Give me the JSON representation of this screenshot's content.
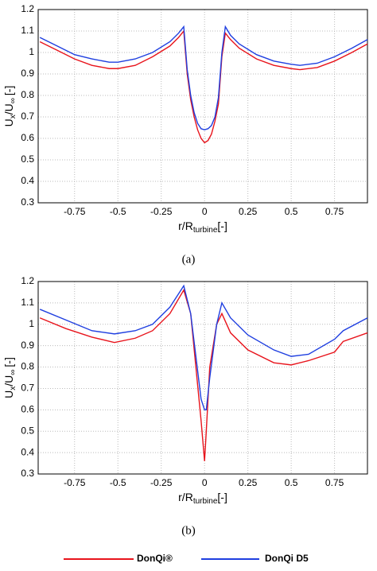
{
  "chart_data": [
    {
      "type": "line",
      "caption": "(a)",
      "xlabel": {
        "main": "r/R",
        "sub": "turbine",
        "suffix": "[-]"
      },
      "ylabel": {
        "main": "U",
        "sub": "x",
        "mid": "/U",
        "sub2": "∞",
        "suffix": "[-]"
      },
      "xlim": [
        -0.96,
        0.94
      ],
      "ylim": [
        0.3,
        1.2
      ],
      "xticks": [
        -0.75,
        -0.5,
        -0.25,
        0,
        0.25,
        0.5,
        0.75
      ],
      "yticks": [
        0.3,
        0.4,
        0.5,
        0.6,
        0.7,
        0.8,
        0.9,
        1,
        1.1,
        1.2
      ],
      "grid": true,
      "x": [
        -0.95,
        -0.85,
        -0.75,
        -0.65,
        -0.55,
        -0.5,
        -0.4,
        -0.3,
        -0.2,
        -0.15,
        -0.12,
        -0.1,
        -0.08,
        -0.06,
        -0.04,
        -0.02,
        0,
        0.02,
        0.04,
        0.06,
        0.08,
        0.1,
        0.12,
        0.15,
        0.2,
        0.3,
        0.4,
        0.5,
        0.55,
        0.65,
        0.75,
        0.85,
        0.94
      ],
      "series": [
        {
          "name": "DonQi®",
          "color": "#e8141c",
          "values": [
            1.05,
            1.01,
            0.97,
            0.94,
            0.925,
            0.925,
            0.94,
            0.98,
            1.03,
            1.07,
            1.1,
            0.9,
            0.78,
            0.7,
            0.64,
            0.6,
            0.58,
            0.59,
            0.62,
            0.68,
            0.76,
            0.98,
            1.09,
            1.06,
            1.02,
            0.97,
            0.94,
            0.925,
            0.92,
            0.93,
            0.96,
            1.0,
            1.04
          ]
        },
        {
          "name": "DonQi D5",
          "color": "#1f3fe0",
          "values": [
            1.07,
            1.03,
            0.99,
            0.97,
            0.955,
            0.955,
            0.97,
            1.0,
            1.05,
            1.09,
            1.12,
            0.92,
            0.8,
            0.72,
            0.67,
            0.645,
            0.64,
            0.645,
            0.66,
            0.7,
            0.79,
            1.0,
            1.12,
            1.08,
            1.04,
            0.99,
            0.96,
            0.945,
            0.94,
            0.95,
            0.98,
            1.02,
            1.06
          ]
        }
      ]
    },
    {
      "type": "line",
      "caption": "(b)",
      "xlabel": {
        "main": "r/R",
        "sub": "turbine",
        "suffix": "[-]"
      },
      "ylabel": {
        "main": "U",
        "sub": "x",
        "mid": "/U",
        "sub2": "∞",
        "suffix": "[-]"
      },
      "xlim": [
        -0.96,
        0.94
      ],
      "ylim": [
        0.3,
        1.2
      ],
      "xticks": [
        -0.75,
        -0.5,
        -0.25,
        0,
        0.25,
        0.5,
        0.75
      ],
      "yticks": [
        0.3,
        0.4,
        0.5,
        0.6,
        0.7,
        0.8,
        0.9,
        1,
        1.1,
        1.2
      ],
      "grid": true,
      "x": [
        -0.95,
        -0.8,
        -0.65,
        -0.52,
        -0.4,
        -0.3,
        -0.2,
        -0.12,
        -0.08,
        -0.05,
        -0.02,
        0,
        0.01,
        0.03,
        0.07,
        0.1,
        0.15,
        0.25,
        0.4,
        0.5,
        0.6,
        0.75,
        0.8,
        0.94
      ],
      "series": [
        {
          "name": "DonQi®",
          "color": "#e8141c",
          "values": [
            1.03,
            0.98,
            0.94,
            0.915,
            0.935,
            0.97,
            1.05,
            1.16,
            1.05,
            0.8,
            0.55,
            0.36,
            0.5,
            0.8,
            1.0,
            1.05,
            0.96,
            0.88,
            0.82,
            0.81,
            0.83,
            0.87,
            0.92,
            0.96
          ]
        },
        {
          "name": "DonQi D5",
          "color": "#1f3fe0",
          "values": [
            1.07,
            1.02,
            0.97,
            0.955,
            0.97,
            1.0,
            1.08,
            1.18,
            1.05,
            0.85,
            0.65,
            0.6,
            0.6,
            0.75,
            1.0,
            1.1,
            1.03,
            0.95,
            0.88,
            0.85,
            0.86,
            0.93,
            0.97,
            1.03
          ]
        }
      ]
    }
  ]
}
